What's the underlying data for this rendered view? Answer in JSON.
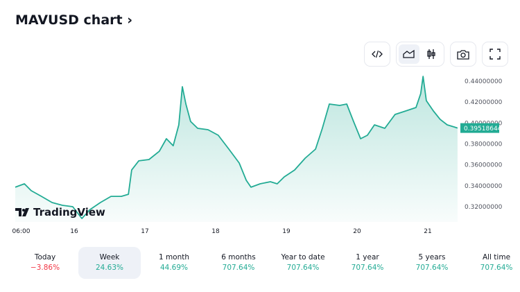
{
  "header": {
    "title": "MAVUSD chart ›"
  },
  "toolbar": {
    "icons": [
      "code-icon",
      "area-chart-icon",
      "candles-icon",
      "camera-icon",
      "fullscreen-icon"
    ],
    "active": "area-chart-icon"
  },
  "logo": {
    "text": "TradingView"
  },
  "chart_data": {
    "type": "area",
    "title": "MAVUSD",
    "x_unit": "hours from day 15 00:00",
    "x_ticks": [
      {
        "h": 6,
        "label": "06:00"
      },
      {
        "h": 24,
        "label": "16"
      },
      {
        "h": 48,
        "label": "17"
      },
      {
        "h": 72,
        "label": "18"
      },
      {
        "h": 96,
        "label": "19"
      },
      {
        "h": 120,
        "label": "20"
      },
      {
        "h": 144,
        "label": "21"
      }
    ],
    "y_ticks": [
      "0.44000000",
      "0.42000000",
      "0.40000000",
      "0.38000000",
      "0.36000000",
      "0.34000000",
      "0.32000000"
    ],
    "y_tick_values": [
      0.44,
      0.42,
      0.4,
      0.38,
      0.36,
      0.34,
      0.32
    ],
    "ylim": [
      0.31,
      0.45
    ],
    "last_price": "0.39518644",
    "last_value": 0.39518644,
    "color": "#22ab94",
    "x": [
      4.0,
      7.1,
      9.4,
      12.9,
      16.5,
      20,
      23.5,
      26.6,
      29.4,
      32.9,
      36.5,
      40,
      42.4,
      43.5,
      45.9,
      49.4,
      52.9,
      55.3,
      57.6,
      59.5,
      60.7,
      61.9,
      63.5,
      65.9,
      69.4,
      72.9,
      76.5,
      80,
      82.4,
      84,
      87.1,
      90.6,
      92.9,
      95.3,
      98.8,
      102.4,
      105.9,
      108.2,
      110.6,
      114.1,
      116.5,
      118.8,
      121.2,
      123.5,
      125.9,
      129.4,
      132.9,
      136.5,
      140,
      141.6,
      142.4,
      143.5,
      145.9,
      148.2,
      150.6,
      153,
      154.1
    ],
    "y": [
      0.3386,
      0.3419,
      0.3353,
      0.3299,
      0.324,
      0.3213,
      0.32,
      0.3087,
      0.3173,
      0.324,
      0.3299,
      0.3299,
      0.3319,
      0.3551,
      0.3638,
      0.3651,
      0.373,
      0.385,
      0.3783,
      0.3982,
      0.4347,
      0.4181,
      0.4015,
      0.3949,
      0.3936,
      0.3883,
      0.375,
      0.3618,
      0.3452,
      0.3386,
      0.3419,
      0.3439,
      0.3419,
      0.3485,
      0.3551,
      0.3664,
      0.375,
      0.3949,
      0.4181,
      0.4168,
      0.4181,
      0.4015,
      0.385,
      0.3883,
      0.3982,
      0.3949,
      0.4082,
      0.4115,
      0.4148,
      0.4281,
      0.4446,
      0.4214,
      0.4115,
      0.4035,
      0.3982,
      0.3962,
      0.3952
    ]
  },
  "periods": [
    {
      "label": "Today",
      "value": "−3.86%",
      "neg": true
    },
    {
      "label": "Week",
      "value": "24.63%",
      "active": true
    },
    {
      "label": "1 month",
      "value": "44.69%"
    },
    {
      "label": "6 months",
      "value": "707.64%"
    },
    {
      "label": "Year to date",
      "value": "707.64%"
    },
    {
      "label": "1 year",
      "value": "707.64%"
    },
    {
      "label": "5 years",
      "value": "707.64%"
    },
    {
      "label": "All time",
      "value": "707.64%"
    }
  ]
}
